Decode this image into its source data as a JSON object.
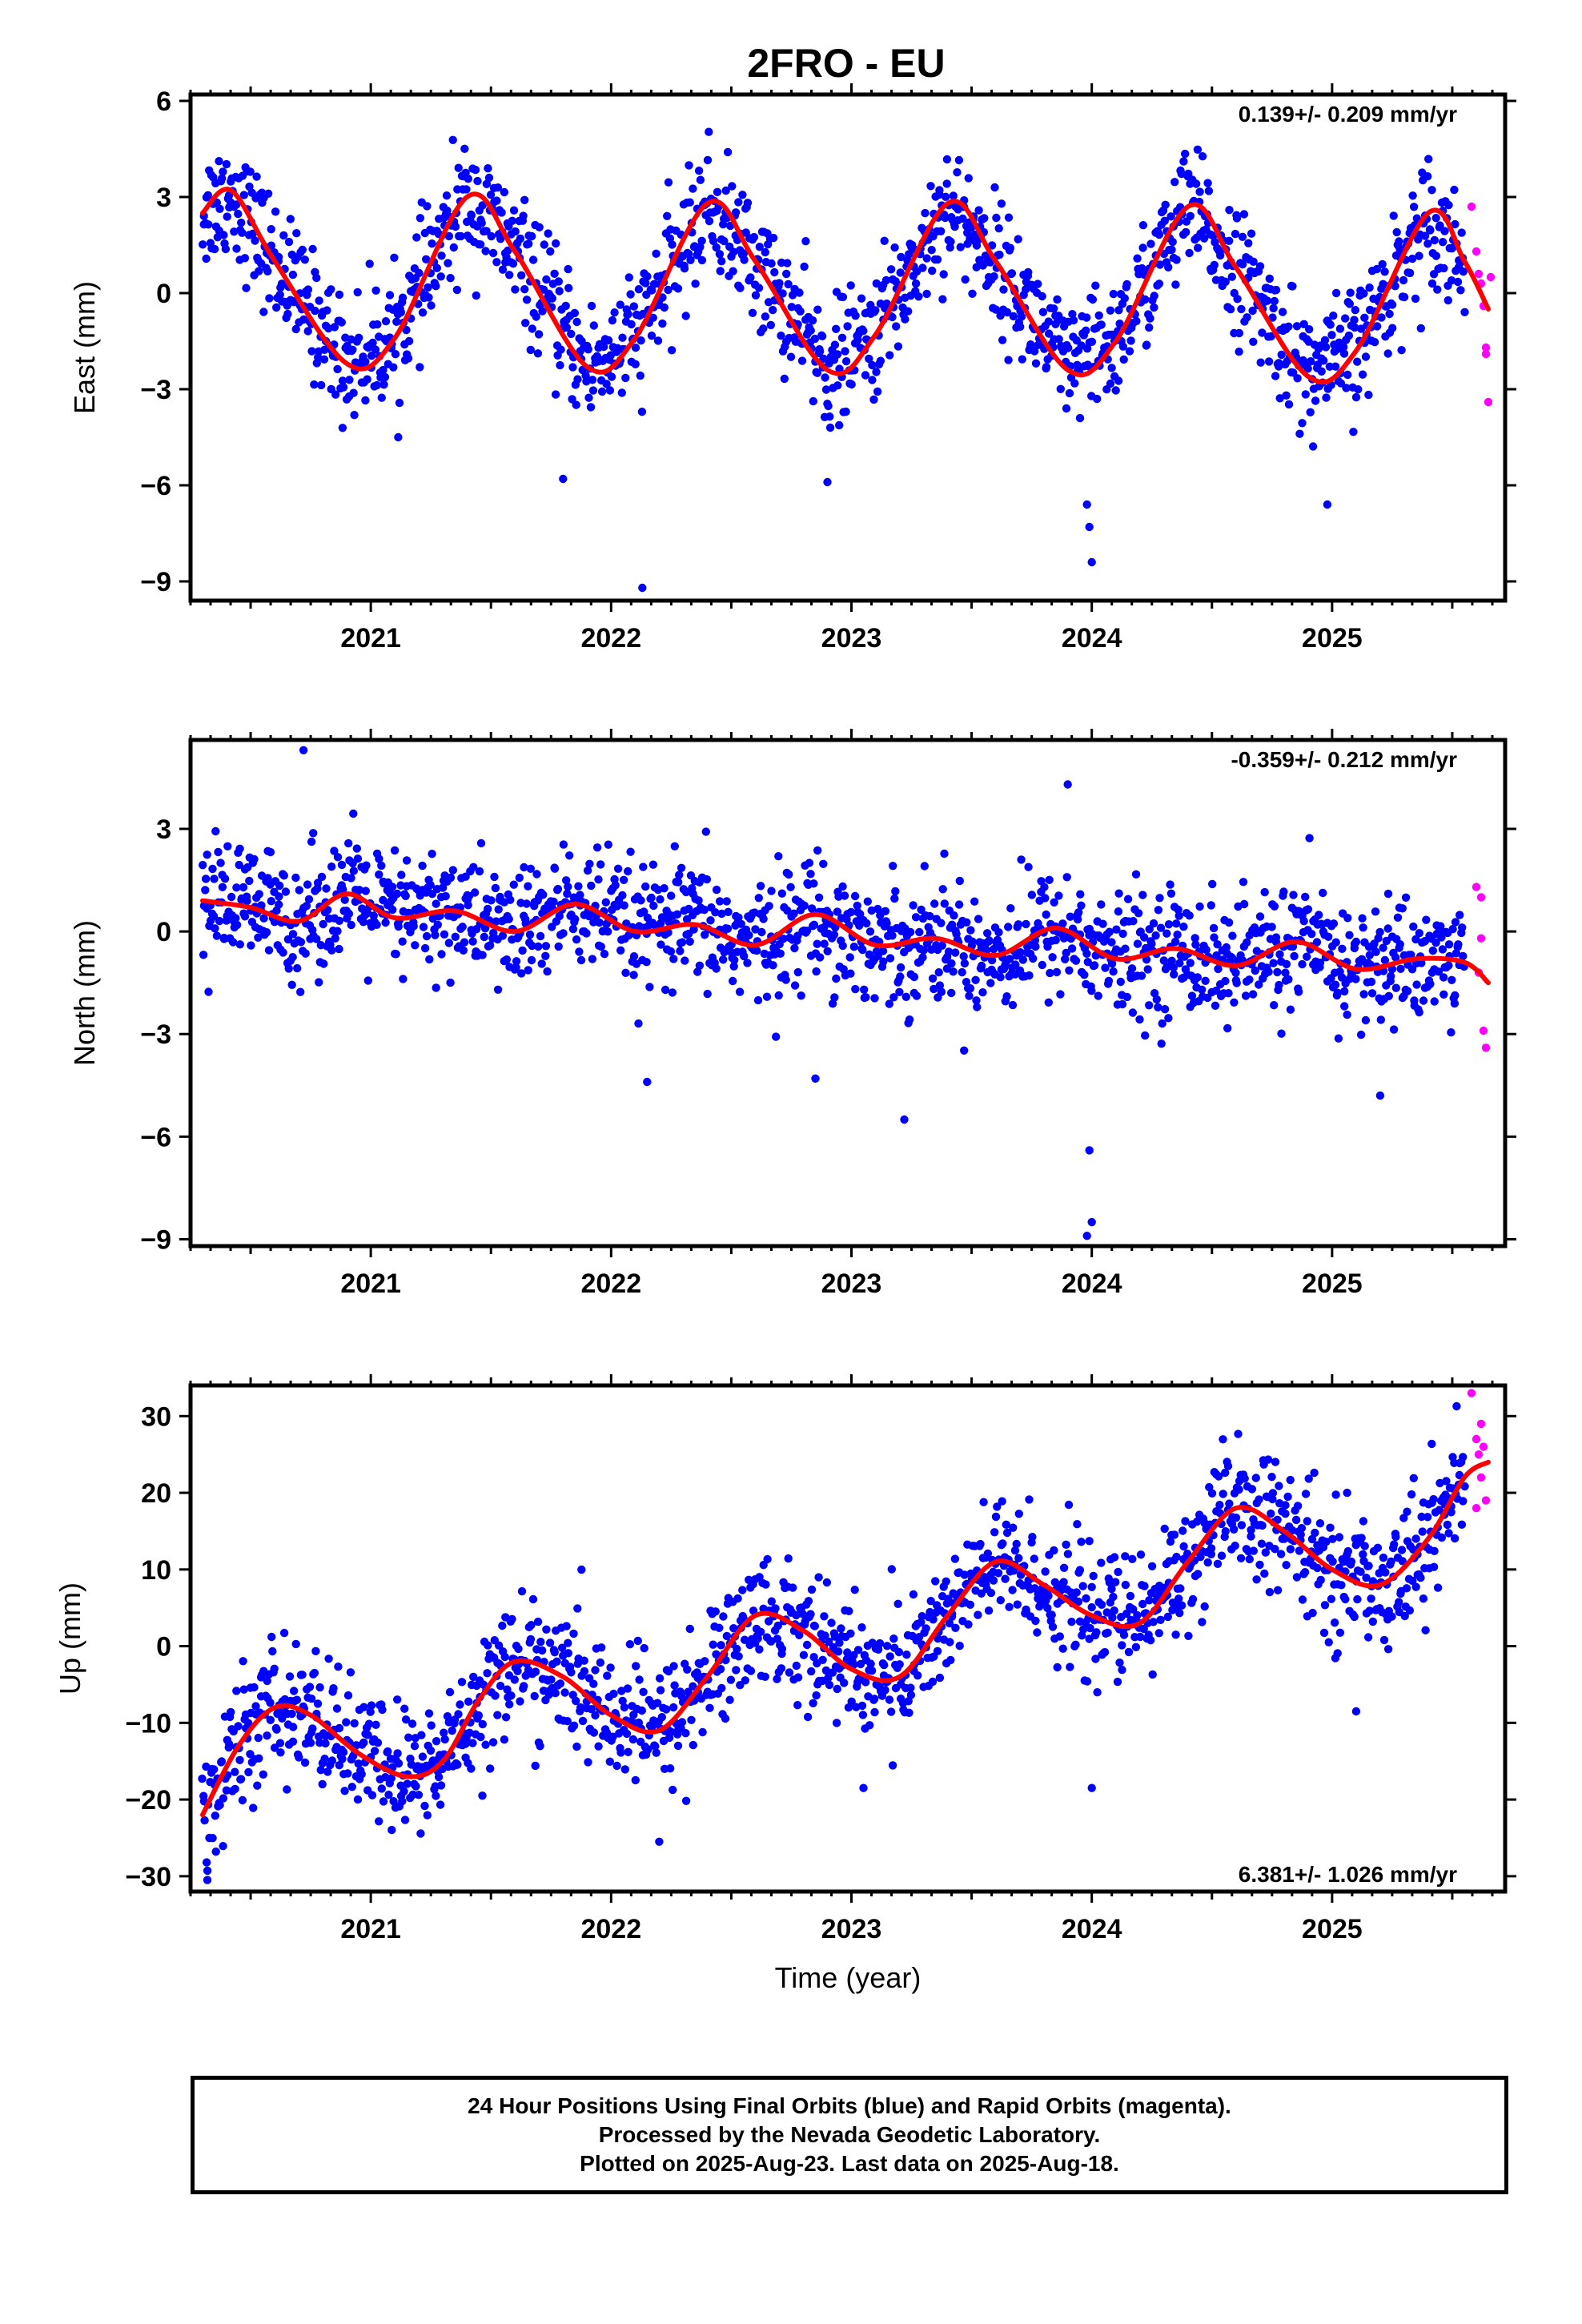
{
  "title": "2FRO - EU",
  "colors": {
    "final": "#0000ff",
    "rapid": "#ff00ff",
    "model": "#ff0000",
    "frame": "#000000"
  },
  "footer": {
    "line1": "24 Hour Positions Using Final Orbits (blue) and Rapid Orbits (magenta).",
    "line2": "Processed by the Nevada Geodetic Laboratory.",
    "line3": "Plotted on 2025-Aug-23. Last data on 2025-Aug-18."
  },
  "chart_data": [
    {
      "type": "scatter",
      "component": "East",
      "ylabel": "East (mm)",
      "xlabel": "",
      "rate_text": "0.139+/- 0.209 mm/yr",
      "rate_position": "top-right",
      "xlim": [
        2020.25,
        2025.72
      ],
      "ylim": [
        -9.6,
        6.2
      ],
      "xticks": [
        2021,
        2022,
        2023,
        2024,
        2025
      ],
      "yticks": [
        6,
        3,
        0,
        -3,
        -6,
        -9
      ],
      "series": [
        {
          "role": "final",
          "color": "blue",
          "x_range": [
            2020.3,
            2025.55
          ],
          "noise_mm": 0.95
        },
        {
          "role": "rapid",
          "color": "magenta",
          "points": [
            [
              2025.58,
              2.7
            ],
            [
              2025.6,
              1.3
            ],
            [
              2025.61,
              0.6
            ],
            [
              2025.62,
              0.3
            ],
            [
              2025.63,
              -0.4
            ],
            [
              2025.64,
              -1.9
            ],
            [
              2025.65,
              -3.4
            ],
            [
              2025.66,
              0.5
            ],
            [
              2025.64,
              -1.7
            ]
          ]
        },
        {
          "role": "model",
          "color": "red",
          "x": [
            2020.3,
            2020.42,
            2020.6,
            2020.9,
            2021.1,
            2021.4,
            2021.6,
            2021.9,
            2022.1,
            2022.4,
            2022.6,
            2022.9,
            2023.1,
            2023.4,
            2023.6,
            2023.9,
            2024.1,
            2024.4,
            2024.6,
            2024.9,
            2025.1,
            2025.4,
            2025.55,
            2025.65
          ],
          "y": [
            2.5,
            3.2,
            1.0,
            -2.2,
            -1.4,
            3.0,
            1.3,
            -2.3,
            -1.4,
            2.8,
            1.0,
            -2.4,
            -1.3,
            2.8,
            1.0,
            -2.4,
            -1.5,
            2.7,
            0.8,
            -2.6,
            -1.8,
            2.5,
            1.0,
            -0.5
          ]
        }
      ],
      "outliers": [
        [
          2021.8,
          -5.8
        ],
        [
          2022.13,
          -9.2
        ],
        [
          2022.9,
          -5.9
        ],
        [
          2023.99,
          -7.3
        ],
        [
          2024.0,
          -8.4
        ],
        [
          2023.98,
          -6.6
        ],
        [
          2024.98,
          -6.6
        ]
      ]
    },
    {
      "type": "scatter",
      "component": "North",
      "ylabel": "North (mm)",
      "xlabel": "",
      "rate_text": "-0.359+/- 0.212 mm/yr",
      "rate_position": "top-right",
      "xlim": [
        2020.25,
        2025.72
      ],
      "ylim": [
        -9.2,
        5.6
      ],
      "xticks": [
        2021,
        2022,
        2023,
        2024,
        2025
      ],
      "yticks": [
        3,
        0,
        -3,
        -6,
        -9
      ],
      "series": [
        {
          "role": "final",
          "color": "blue",
          "x_range": [
            2020.3,
            2025.55
          ],
          "noise_mm": 0.9
        },
        {
          "role": "rapid",
          "color": "magenta",
          "points": [
            [
              2025.6,
              1.3
            ],
            [
              2025.62,
              1.0
            ],
            [
              2025.61,
              -1.2
            ],
            [
              2025.63,
              -2.9
            ],
            [
              2025.64,
              -3.4
            ],
            [
              2025.62,
              -0.2
            ]
          ]
        },
        {
          "role": "model",
          "color": "red",
          "x": [
            2020.3,
            2020.5,
            2020.7,
            2020.9,
            2021.1,
            2021.35,
            2021.6,
            2021.85,
            2022.1,
            2022.35,
            2022.6,
            2022.85,
            2023.1,
            2023.35,
            2023.6,
            2023.85,
            2024.1,
            2024.35,
            2024.6,
            2024.85,
            2025.1,
            2025.35,
            2025.55,
            2025.65
          ],
          "y": [
            0.9,
            0.7,
            0.3,
            1.1,
            0.4,
            0.6,
            0.0,
            0.8,
            0.0,
            0.2,
            -0.4,
            0.5,
            -0.4,
            -0.2,
            -0.7,
            0.1,
            -0.8,
            -0.5,
            -1.0,
            -0.3,
            -1.1,
            -0.8,
            -0.9,
            -1.5
          ]
        }
      ],
      "outliers": [
        [
          2020.72,
          5.3
        ],
        [
          2022.15,
          -4.4
        ],
        [
          2022.85,
          -4.3
        ],
        [
          2023.22,
          -5.5
        ],
        [
          2023.99,
          -6.4
        ],
        [
          2024.0,
          -8.5
        ],
        [
          2023.98,
          -8.9
        ],
        [
          2025.2,
          -4.8
        ],
        [
          2023.9,
          4.3
        ]
      ]
    },
    {
      "type": "scatter",
      "component": "Up",
      "ylabel": "Up (mm)",
      "xlabel": "Time (year)",
      "rate_text": "6.381+/- 1.026 mm/yr",
      "rate_position": "bottom-right",
      "xlim": [
        2020.25,
        2025.72
      ],
      "ylim": [
        -32,
        34
      ],
      "xticks": [
        2021,
        2022,
        2023,
        2024,
        2025
      ],
      "yticks": [
        30,
        20,
        10,
        0,
        -10,
        -20,
        -30
      ],
      "series": [
        {
          "role": "final",
          "color": "blue",
          "x_range": [
            2020.3,
            2025.55
          ],
          "noise_mm": 4.2
        },
        {
          "role": "rapid",
          "color": "magenta",
          "points": [
            [
              2025.58,
              33.0
            ],
            [
              2025.62,
              29.0
            ],
            [
              2025.6,
              27.0
            ],
            [
              2025.63,
              26.0
            ],
            [
              2025.61,
              25.0
            ],
            [
              2025.62,
              22.0
            ],
            [
              2025.64,
              19.0
            ],
            [
              2025.6,
              18.0
            ]
          ]
        },
        {
          "role": "model",
          "color": "red",
          "x": [
            2020.3,
            2020.45,
            2020.6,
            2020.75,
            2020.95,
            2021.15,
            2021.3,
            2021.45,
            2021.6,
            2021.8,
            2022.0,
            2022.2,
            2022.4,
            2022.6,
            2022.8,
            2023.0,
            2023.2,
            2023.4,
            2023.6,
            2023.8,
            2024.0,
            2024.2,
            2024.4,
            2024.6,
            2024.8,
            2025.0,
            2025.2,
            2025.4,
            2025.55,
            2025.65
          ],
          "y": [
            -22.0,
            -13.0,
            -8.0,
            -9.0,
            -14.0,
            -17.0,
            -15.0,
            -7.0,
            -2.0,
            -4.0,
            -9.0,
            -11.0,
            -4.0,
            4.0,
            2.0,
            -3.0,
            -4.0,
            4.0,
            11.0,
            8.0,
            4.0,
            3.0,
            11.0,
            18.0,
            15.0,
            10.0,
            8.0,
            14.0,
            22.0,
            24.0
          ]
        }
      ],
      "outliers": [
        [
          2020.32,
          -30.5
        ],
        [
          2022.2,
          -25.5
        ],
        [
          2023.05,
          -18.5
        ],
        [
          2024.0,
          -18.5
        ],
        [
          2025.1,
          -8.5
        ]
      ]
    }
  ]
}
